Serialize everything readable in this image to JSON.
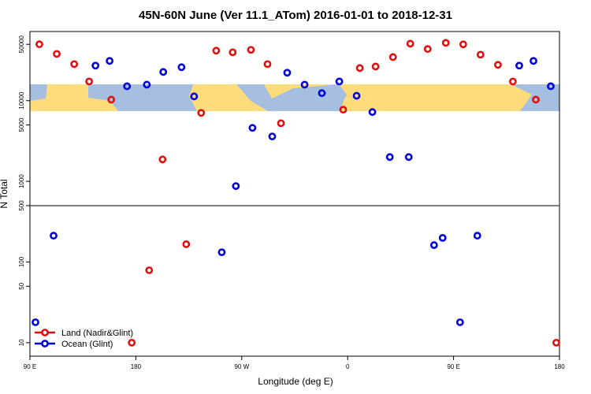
{
  "chart_data": {
    "type": "scatter",
    "title": "45N-60N June (Ver 11.1_ATom)   2016-01-01 to 2018-12-31",
    "x_label": "Longitude (deg E)",
    "y_label": "N Total",
    "log_y": true,
    "xlim": [
      90,
      540
    ],
    "ylim": [
      6.8,
      72000
    ],
    "xticks": [
      {
        "value": 90,
        "label": "90 E"
      },
      {
        "value": 180,
        "label": "180"
      },
      {
        "value": 270,
        "label": "90 W"
      },
      {
        "value": 360,
        "label": "0"
      },
      {
        "value": 450,
        "label": "90 E"
      },
      {
        "value": 540,
        "label": "180"
      }
    ],
    "yticks": [
      10,
      50,
      100,
      500,
      1000,
      5000,
      10000,
      50000
    ],
    "hline": 500,
    "legend": "bottom-left",
    "series": [
      {
        "name": "Land (Nadir&Glint)",
        "color": "#e01010",
        "x": [
          98,
          112.8,
          127.6,
          140.3,
          159.1,
          176.5,
          191.3,
          202.7,
          222.8,
          235.5,
          248.3,
          262.3,
          277.8,
          291.9,
          303.3,
          356.2,
          370.3,
          383.7,
          398.5,
          413.2,
          428,
          443.4,
          458.2,
          472.9,
          487.7,
          500.4,
          519.9,
          537.3
        ],
        "values": [
          50000,
          38000,
          28400,
          17300,
          10300,
          10,
          79,
          1870,
          166,
          7060,
          41700,
          39800,
          42700,
          28400,
          5250,
          7730,
          25400,
          26500,
          34700,
          50900,
          43700,
          52100,
          49900,
          37200,
          27800,
          17300,
          10300,
          10
        ]
      },
      {
        "name": "Ocean (Glint)",
        "color": "#0000dd",
        "x": [
          94.7,
          110.1,
          145.7,
          157.7,
          172.5,
          189.3,
          203.3,
          218.8,
          229.5,
          253,
          265,
          279.1,
          295.9,
          308.6,
          323.4,
          338.1,
          352.9,
          367.6,
          381,
          395.8,
          411.9,
          433.4,
          440.7,
          455.5,
          470.2,
          505.8,
          517.9,
          532.6
        ],
        "values": [
          17.9,
          212,
          27200,
          31100,
          15100,
          15800,
          22700,
          26000,
          11300,
          132,
          873,
          4600,
          3600,
          22200,
          15800,
          12400,
          17300,
          11500,
          7230,
          2000,
          2000,
          162,
          199,
          17.9,
          212,
          27200,
          31100,
          15100
        ]
      }
    ]
  }
}
